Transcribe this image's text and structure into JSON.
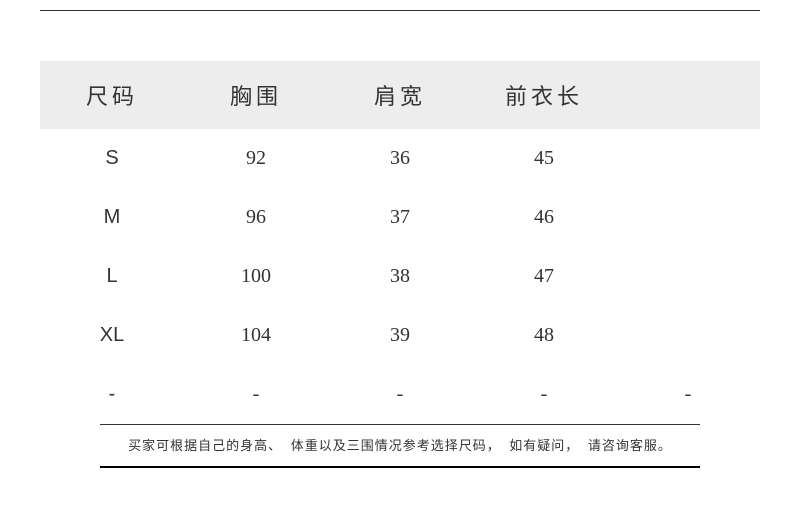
{
  "table": {
    "type": "table",
    "header_bg": "#ededed",
    "text_color": "#333333",
    "columns": [
      "尺码",
      "胸围",
      "肩宽",
      "前衣长"
    ],
    "rows": [
      [
        "S",
        "92",
        "36",
        "45"
      ],
      [
        "M",
        "96",
        "37",
        "46"
      ],
      [
        "L",
        "100",
        "38",
        "47"
      ],
      [
        "XL",
        "104",
        "39",
        "48"
      ],
      [
        "-",
        "-",
        "-",
        "-"
      ]
    ],
    "column_count_header": 4,
    "column_count_body": 5,
    "header_fontsize": 22,
    "cell_fontsize": 20,
    "note_fontsize": 13,
    "rule_color": "#333333"
  },
  "note": "买家可根据自己的身高、 体重以及三围情况参考选择尺码， 如有疑问， 请咨询客服。"
}
